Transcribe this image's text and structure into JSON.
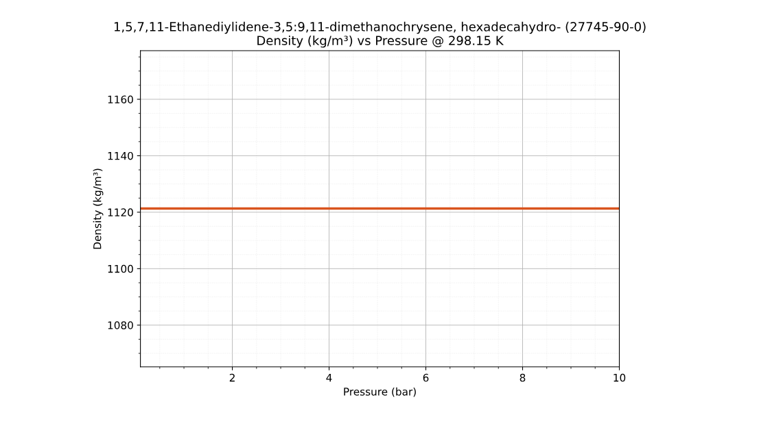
{
  "chart_data": {
    "type": "line",
    "title": "1,5,7,11-Ethanediylidene-3,5:9,11-dimethanochrysene, hexadecahydro- (27745-90-0)\nDensity (kg/m³) vs Pressure @ 298.15 K",
    "xlabel": "Pressure (bar)",
    "ylabel": "Density (kg/m³)",
    "series": [
      {
        "color": "#d9541e",
        "x": [
          0.1,
          10
        ],
        "values": [
          1121.3,
          1121.3
        ]
      }
    ],
    "xlim": [
      0.1,
      10
    ],
    "xticks": [
      2,
      4,
      6,
      8,
      10
    ],
    "ylim": [
      1065.2,
      1177.2
    ],
    "yticks": [
      1080,
      1100,
      1120,
      1140,
      1160
    ],
    "grid": true,
    "legend": false,
    "marker": "none",
    "line_style": "solid"
  }
}
